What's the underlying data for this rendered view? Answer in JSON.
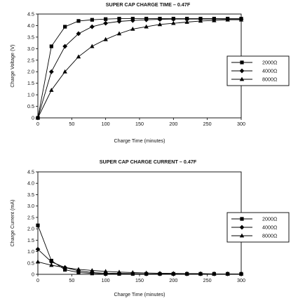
{
  "chart_data": [
    {
      "type": "line",
      "title": "SUPER CAP CHARGE TIME – 0.47F",
      "xlabel": "Charge Time (minutes)",
      "ylabel": "Charge Voltage (V)",
      "xlim": [
        0,
        300
      ],
      "ylim": [
        0,
        4.5
      ],
      "xticks": [
        "0",
        "50",
        "100",
        "150",
        "200",
        "250",
        "300"
      ],
      "yticks": [
        "0",
        "0.5",
        "1.0",
        "1.5",
        "2.0",
        "2.5",
        "3.0",
        "3.5",
        "4.0",
        "4.5"
      ],
      "grid": false,
      "legend_position": "right",
      "series": [
        {
          "name": "2000Ω",
          "marker": "square",
          "x": [
            0,
            20,
            40,
            60,
            80,
            100,
            120,
            140,
            160,
            180,
            200,
            220,
            240,
            260,
            280,
            300
          ],
          "y": [
            0,
            3.1,
            3.95,
            4.2,
            4.25,
            4.28,
            4.3,
            4.3,
            4.3,
            4.3,
            4.3,
            4.3,
            4.3,
            4.3,
            4.3,
            4.3
          ]
        },
        {
          "name": "4000Ω",
          "marker": "diamond",
          "x": [
            0,
            20,
            40,
            60,
            80,
            100,
            120,
            140,
            160,
            180,
            200,
            220,
            240,
            260,
            280,
            300
          ],
          "y": [
            0,
            2.0,
            3.1,
            3.65,
            3.95,
            4.1,
            4.18,
            4.22,
            4.25,
            4.27,
            4.28,
            4.28,
            4.28,
            4.28,
            4.28,
            4.28
          ]
        },
        {
          "name": "8000Ω",
          "marker": "triangle",
          "x": [
            0,
            20,
            40,
            60,
            80,
            100,
            120,
            140,
            160,
            180,
            200,
            220,
            240,
            260,
            280,
            300
          ],
          "y": [
            0,
            1.2,
            2.0,
            2.65,
            3.1,
            3.4,
            3.65,
            3.85,
            3.95,
            4.05,
            4.1,
            4.15,
            4.2,
            4.22,
            4.25,
            4.25
          ]
        }
      ]
    },
    {
      "type": "line",
      "title": "SUPER CAP CHARGE CURRENT – 0.47F",
      "xlabel": "Charge Time (minutes)",
      "ylabel": "Charge Current (mA)",
      "xlim": [
        0,
        300
      ],
      "ylim": [
        0,
        4.5
      ],
      "xticks": [
        "0",
        "50",
        "100",
        "150",
        "200",
        "250",
        "300"
      ],
      "yticks": [
        "0",
        "0.5",
        "1.0",
        "1.5",
        "2.0",
        "2.5",
        "3.0",
        "3.5",
        "4.0",
        "4.5"
      ],
      "grid": false,
      "legend_position": "right",
      "series": [
        {
          "name": "2000Ω",
          "marker": "square",
          "x": [
            0,
            20,
            40,
            60,
            80,
            100,
            120,
            140,
            160,
            180,
            200,
            220,
            240,
            260,
            280,
            300
          ],
          "y": [
            2.15,
            0.6,
            0.2,
            0.08,
            0.04,
            0.02,
            0.02,
            0.02,
            0.02,
            0.02,
            0.02,
            0.02,
            0.02,
            0.02,
            0.02,
            0.02
          ]
        },
        {
          "name": "4000Ω",
          "marker": "diamond",
          "x": [
            0,
            20,
            40,
            60,
            80,
            100,
            120,
            140,
            160,
            180,
            200,
            220,
            240,
            260,
            280,
            300
          ],
          "y": [
            1.1,
            0.55,
            0.3,
            0.15,
            0.08,
            0.05,
            0.04,
            0.03,
            0.02,
            0.02,
            0.02,
            0.02,
            0.02,
            0.02,
            0.02,
            0.02
          ]
        },
        {
          "name": "8000Ω",
          "marker": "triangle",
          "x": [
            0,
            20,
            40,
            60,
            80,
            100,
            120,
            140,
            160,
            180,
            200,
            220,
            240,
            260,
            280,
            300
          ],
          "y": [
            0.55,
            0.4,
            0.3,
            0.22,
            0.17,
            0.13,
            0.1,
            0.08,
            0.06,
            0.05,
            0.04,
            0.03,
            0.03,
            0.02,
            0.02,
            0.02
          ]
        }
      ]
    }
  ]
}
